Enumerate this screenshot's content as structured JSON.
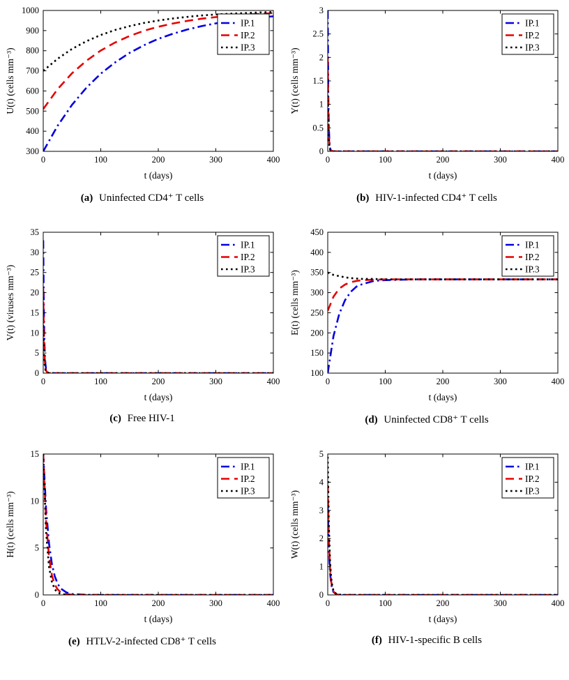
{
  "figure": {
    "colors": {
      "blue": "#0000e1",
      "red": "#e60000",
      "black": "#000000"
    },
    "legend_entries": [
      "IP.1",
      "IP.2",
      "IP.3"
    ],
    "legend_position": "top-right"
  },
  "chart_data": [
    {
      "id": "a",
      "type": "line",
      "caption_label": "(a)",
      "caption_text": "Uninfected CD4⁺ T cells",
      "xlabel": "t (days)",
      "ylabel": "U(t) (cells mm⁻³)",
      "xlim": [
        0,
        400
      ],
      "ylim": [
        300,
        1000
      ],
      "xticks": [
        0,
        100,
        200,
        300,
        400
      ],
      "yticks": [
        300,
        400,
        500,
        600,
        700,
        800,
        900,
        1000
      ],
      "grid": false,
      "legend_position": "top-right",
      "series": [
        {
          "name": "IP.1",
          "color": "#0000e1",
          "dash": "dashdot",
          "x": [
            0,
            25,
            50,
            75,
            100,
            125,
            150,
            175,
            200,
            225,
            250,
            275,
            300,
            325,
            350,
            375,
            400
          ],
          "y": [
            300,
            427,
            531,
            616,
            686,
            742,
            789,
            827,
            859,
            884,
            905,
            922,
            936,
            948,
            957,
            965,
            971
          ]
        },
        {
          "name": "IP.2",
          "color": "#e60000",
          "dash": "dashed",
          "x": [
            0,
            25,
            50,
            75,
            100,
            125,
            150,
            175,
            200,
            225,
            250,
            275,
            300,
            325,
            350,
            375,
            400
          ],
          "y": [
            510,
            609,
            688,
            750,
            801,
            841,
            873,
            899,
            919,
            935,
            948,
            959,
            967,
            974,
            979,
            983,
            987
          ]
        },
        {
          "name": "IP.3",
          "color": "#000000",
          "dash": "dotted",
          "x": [
            0,
            25,
            50,
            75,
            100,
            125,
            150,
            175,
            200,
            225,
            250,
            275,
            300,
            325,
            350,
            375,
            400
          ],
          "y": [
            700,
            760,
            809,
            847,
            878,
            903,
            922,
            938,
            950,
            960,
            968,
            975,
            980,
            984,
            987,
            990,
            992
          ]
        }
      ]
    },
    {
      "id": "b",
      "type": "line",
      "caption_label": "(b)",
      "caption_text": "HIV-1-infected CD4⁺ T cells",
      "xlabel": "t (days)",
      "ylabel": "Y(t) (cells mm⁻³)",
      "xlim": [
        0,
        400
      ],
      "ylim": [
        0,
        3
      ],
      "xticks": [
        0,
        100,
        200,
        300,
        400
      ],
      "yticks": [
        0,
        0.5,
        1,
        1.5,
        2,
        2.5,
        3
      ],
      "grid": false,
      "legend_position": "top-right",
      "series": [
        {
          "name": "IP.1",
          "color": "#0000e1",
          "dash": "dashdot",
          "x": [
            0,
            1,
            2,
            3,
            4,
            5,
            7,
            10,
            15,
            20,
            50,
            100,
            150,
            200,
            250,
            300,
            350,
            400
          ],
          "y": [
            3,
            1.22,
            0.5,
            0.2,
            0.08,
            0.03,
            0.01,
            0,
            0,
            0,
            0,
            0,
            0,
            0,
            0,
            0,
            0,
            0
          ]
        },
        {
          "name": "IP.2",
          "color": "#e60000",
          "dash": "dashed",
          "x": [
            0,
            1,
            2,
            3,
            4,
            5,
            7,
            10,
            15,
            20,
            50,
            100,
            150,
            200,
            250,
            300,
            350,
            400
          ],
          "y": [
            2,
            0.81,
            0.33,
            0.13,
            0.05,
            0.02,
            0.01,
            0,
            0,
            0,
            0,
            0,
            0,
            0,
            0,
            0,
            0,
            0
          ]
        },
        {
          "name": "IP.3",
          "color": "#000000",
          "dash": "dotted",
          "x": [
            0,
            1,
            2,
            3,
            4,
            5,
            7,
            10,
            15,
            20,
            50,
            100,
            150,
            200,
            250,
            300,
            350,
            400
          ],
          "y": [
            1.3,
            0.53,
            0.22,
            0.09,
            0.04,
            0.01,
            0,
            0,
            0,
            0,
            0,
            0,
            0,
            0,
            0,
            0,
            0,
            0
          ]
        }
      ]
    },
    {
      "id": "c",
      "type": "line",
      "caption_label": "(c)",
      "caption_text": "Free HIV-1",
      "xlabel": "t (days)",
      "ylabel": "V(t) (viruses mm⁻³)",
      "xlim": [
        0,
        400
      ],
      "ylim": [
        0,
        35
      ],
      "xticks": [
        0,
        100,
        200,
        300,
        400
      ],
      "yticks": [
        0,
        5,
        10,
        15,
        20,
        25,
        30,
        35
      ],
      "grid": false,
      "legend_position": "top-right",
      "series": [
        {
          "name": "IP.1",
          "color": "#0000e1",
          "dash": "dashdot",
          "x": [
            0,
            1,
            2,
            3,
            4,
            5,
            7,
            10,
            15,
            20,
            50,
            100,
            150,
            200,
            250,
            300,
            350,
            400
          ],
          "y": [
            33,
            16.4,
            8.1,
            4,
            2,
            1,
            0.25,
            0.03,
            0,
            0,
            0,
            0,
            0,
            0,
            0,
            0,
            0,
            0
          ]
        },
        {
          "name": "IP.2",
          "color": "#e60000",
          "dash": "dashed",
          "x": [
            0,
            1,
            2,
            3,
            4,
            5,
            7,
            10,
            15,
            20,
            50,
            100,
            150,
            200,
            250,
            300,
            350,
            400
          ],
          "y": [
            21,
            10.4,
            5.2,
            2.6,
            1.3,
            0.6,
            0.16,
            0.02,
            0,
            0,
            0,
            0,
            0,
            0,
            0,
            0,
            0,
            0
          ]
        },
        {
          "name": "IP.3",
          "color": "#000000",
          "dash": "dotted",
          "x": [
            0,
            1,
            2,
            3,
            4,
            5,
            7,
            10,
            15,
            20,
            50,
            100,
            150,
            200,
            250,
            300,
            350,
            400
          ],
          "y": [
            12,
            6,
            3,
            1.5,
            0.74,
            0.37,
            0.09,
            0.01,
            0,
            0,
            0,
            0,
            0,
            0,
            0,
            0,
            0,
            0
          ]
        }
      ]
    },
    {
      "id": "d",
      "type": "line",
      "caption_label": "(d)",
      "caption_text": "Uninfected CD8⁺ T cells",
      "xlabel": "t (days)",
      "ylabel": "E(t) (cells mm⁻³)",
      "xlim": [
        0,
        400
      ],
      "ylim": [
        100,
        450
      ],
      "xticks": [
        0,
        100,
        200,
        300,
        400
      ],
      "yticks": [
        100,
        150,
        200,
        250,
        300,
        350,
        400,
        450
      ],
      "grid": false,
      "legend_position": "top-right",
      "series": [
        {
          "name": "IP.1",
          "color": "#0000e1",
          "dash": "dashdot",
          "x": [
            0,
            10,
            20,
            30,
            40,
            50,
            60,
            80,
            100,
            150,
            200,
            250,
            300,
            350,
            400
          ],
          "y": [
            100,
            192,
            247,
            281,
            302,
            315,
            321,
            329,
            331,
            333,
            333,
            333,
            333,
            333,
            333
          ]
        },
        {
          "name": "IP.2",
          "color": "#e60000",
          "dash": "dashed",
          "x": [
            0,
            10,
            20,
            30,
            40,
            50,
            60,
            80,
            100,
            150,
            200,
            250,
            300,
            350,
            400
          ],
          "y": [
            255,
            290,
            310,
            320,
            326,
            329,
            331,
            332,
            333,
            333,
            333,
            333,
            333,
            333,
            333
          ]
        },
        {
          "name": "IP.3",
          "color": "#000000",
          "dash": "dotted",
          "x": [
            0,
            10,
            20,
            30,
            40,
            50,
            60,
            80,
            100,
            150,
            200,
            250,
            300,
            350,
            400
          ],
          "y": [
            350,
            344,
            341,
            338,
            336,
            335,
            334,
            334,
            333,
            333,
            333,
            333,
            333,
            333,
            333
          ]
        }
      ]
    },
    {
      "id": "e",
      "type": "line",
      "caption_label": "(e)",
      "caption_text": "HTLV-2-infected CD8⁺ T cells",
      "xlabel": "t (days)",
      "ylabel": "H(t) (cells mm⁻³)",
      "xlim": [
        0,
        400
      ],
      "ylim": [
        0,
        15
      ],
      "xticks": [
        0,
        100,
        200,
        300,
        400
      ],
      "yticks": [
        0,
        5,
        10,
        15
      ],
      "grid": false,
      "legend_position": "top-right",
      "series": [
        {
          "name": "IP.1",
          "color": "#0000e1",
          "dash": "dashdot",
          "x": [
            0,
            5,
            10,
            15,
            20,
            25,
            30,
            40,
            50,
            75,
            100,
            150,
            200,
            250,
            300,
            350,
            400
          ],
          "y": [
            15,
            9.1,
            5.5,
            3.3,
            2,
            1.2,
            0.7,
            0.27,
            0.1,
            0.01,
            0,
            0,
            0,
            0,
            0,
            0,
            0
          ]
        },
        {
          "name": "IP.2",
          "color": "#e60000",
          "dash": "dashed",
          "x": [
            0,
            5,
            10,
            15,
            20,
            25,
            30,
            40,
            50,
            75,
            100,
            150,
            200,
            250,
            300,
            350,
            400
          ],
          "y": [
            15,
            7.8,
            4.1,
            2.1,
            1.1,
            0.6,
            0.3,
            0.08,
            0.02,
            0,
            0,
            0,
            0,
            0,
            0,
            0,
            0
          ]
        },
        {
          "name": "IP.3",
          "color": "#000000",
          "dash": "dotted",
          "x": [
            0,
            5,
            10,
            15,
            20,
            25,
            30,
            40,
            50,
            75,
            100,
            150,
            200,
            250,
            300,
            350,
            400
          ],
          "y": [
            15,
            6.7,
            3,
            1.4,
            0.6,
            0.27,
            0.12,
            0.02,
            0,
            0,
            0,
            0,
            0,
            0,
            0,
            0,
            0
          ]
        }
      ]
    },
    {
      "id": "f",
      "type": "line",
      "caption_label": "(f)",
      "caption_text": "HIV-1-specific B cells",
      "xlabel": "t (days)",
      "ylabel": "W(t) (cells mm⁻³)",
      "xlim": [
        0,
        400
      ],
      "ylim": [
        0,
        5
      ],
      "xticks": [
        0,
        100,
        200,
        300,
        400
      ],
      "yticks": [
        0,
        1,
        2,
        3,
        4,
        5
      ],
      "grid": false,
      "legend_position": "top-right",
      "series": [
        {
          "name": "IP.1",
          "color": "#0000e1",
          "dash": "dashdot",
          "x": [
            0,
            2,
            4,
            6,
            8,
            10,
            15,
            20,
            30,
            50,
            100,
            150,
            200,
            250,
            300,
            350,
            400
          ],
          "y": [
            3.2,
            1.59,
            0.79,
            0.39,
            0.2,
            0.1,
            0.02,
            0,
            0,
            0,
            0,
            0,
            0,
            0,
            0,
            0,
            0
          ]
        },
        {
          "name": "IP.2",
          "color": "#e60000",
          "dash": "dashed",
          "x": [
            0,
            2,
            4,
            6,
            8,
            10,
            15,
            20,
            30,
            50,
            100,
            150,
            200,
            250,
            300,
            350,
            400
          ],
          "y": [
            3.9,
            1.94,
            0.96,
            0.48,
            0.24,
            0.12,
            0.02,
            0,
            0,
            0,
            0,
            0,
            0,
            0,
            0,
            0,
            0
          ]
        },
        {
          "name": "IP.3",
          "color": "#000000",
          "dash": "dotted",
          "x": [
            0,
            2,
            4,
            6,
            8,
            10,
            15,
            20,
            30,
            50,
            100,
            150,
            200,
            250,
            300,
            350,
            400
          ],
          "y": [
            4.9,
            2.43,
            1.21,
            0.6,
            0.3,
            0.15,
            0.03,
            0.01,
            0,
            0,
            0,
            0,
            0,
            0,
            0,
            0,
            0
          ]
        }
      ]
    }
  ]
}
